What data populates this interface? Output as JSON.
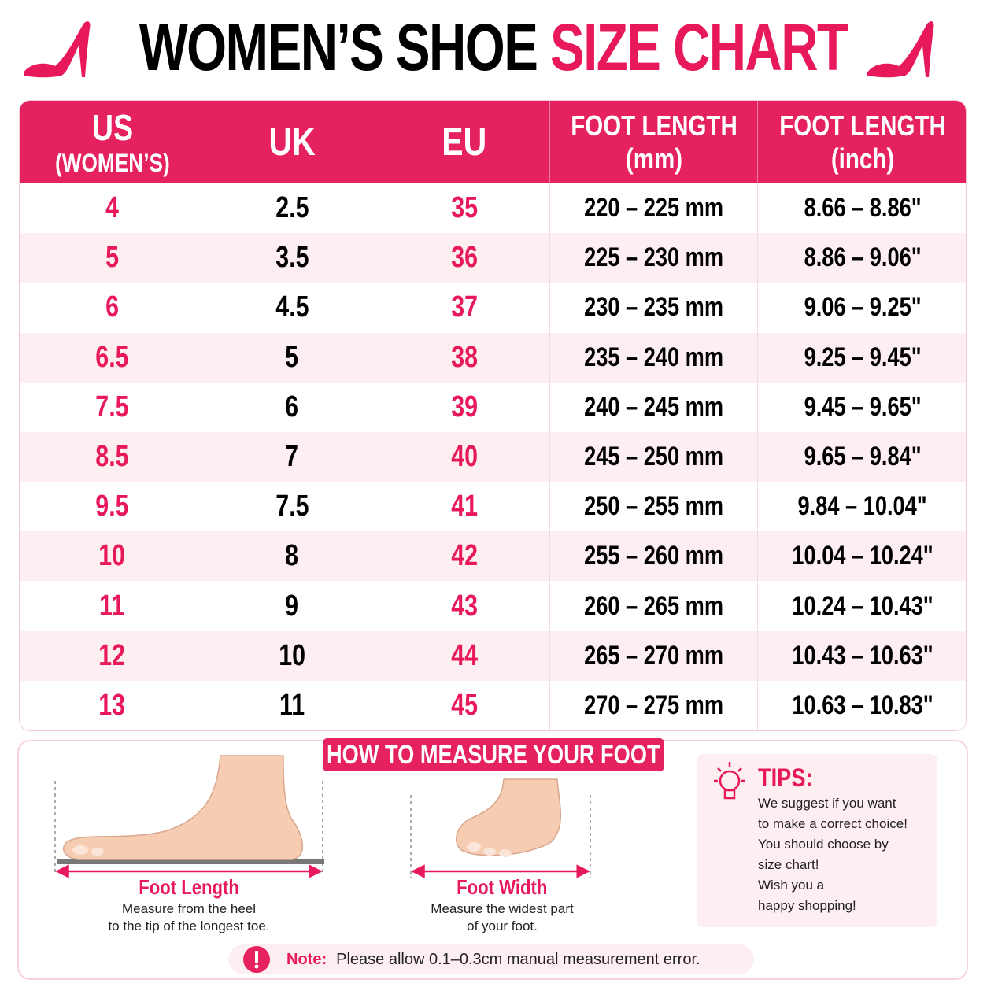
{
  "title": {
    "main": "WOMEN’S SHOE",
    "accent": "SIZE CHART"
  },
  "table": {
    "headers": [
      [
        "US",
        "(WOMEN’S)"
      ],
      [
        "UK"
      ],
      [
        "EU"
      ],
      [
        "FOOT LENGTH",
        "(mm)"
      ],
      [
        "FOOT LENGTH",
        "(inch)"
      ]
    ],
    "rows": [
      [
        "4",
        "2.5",
        "35",
        "220 – 225 mm",
        "8.66 – 8.86\""
      ],
      [
        "5",
        "3.5",
        "36",
        "225 – 230 mm",
        "8.86 – 9.06\""
      ],
      [
        "6",
        "4.5",
        "37",
        "230 – 235 mm",
        "9.06 – 9.25\""
      ],
      [
        "6.5",
        "5",
        "38",
        "235 – 240 mm",
        "9.25 – 9.45\""
      ],
      [
        "7.5",
        "6",
        "39",
        "240 – 245 mm",
        "9.45 – 9.65\""
      ],
      [
        "8.5",
        "7",
        "40",
        "245 – 250 mm",
        "9.65 – 9.84\""
      ],
      [
        "9.5",
        "7.5",
        "41",
        "250 – 255 mm",
        "9.84 – 10.04\""
      ],
      [
        "10",
        "8",
        "42",
        "255 – 260 mm",
        "10.04 – 10.24\""
      ],
      [
        "11",
        "9",
        "43",
        "260 – 265 mm",
        "10.24 – 10.43\""
      ],
      [
        "12",
        "10",
        "44",
        "265 – 270 mm",
        "10.43 – 10.63\""
      ],
      [
        "13",
        "11",
        "45",
        "270 – 275 mm",
        "10.63 – 10.83\""
      ]
    ]
  },
  "measure": {
    "title": "HOW TO MEASURE YOUR FOOT",
    "length": {
      "label": "Foot Length",
      "text": [
        "Measure from the heel",
        "to the tip of the longest toe."
      ]
    },
    "width": {
      "label": "Foot Width",
      "text": [
        "Measure the widest part",
        "of your foot."
      ]
    }
  },
  "tips": {
    "title": "TIPS:",
    "lines": [
      "We suggest if you want",
      "to make a correct choice!",
      "You should choose by",
      "size chart!",
      "Wish you a",
      "happy shopping!"
    ]
  },
  "note": {
    "label": "Note:",
    "text": "Please allow 0.1–0.3cm manual measurement error."
  }
}
